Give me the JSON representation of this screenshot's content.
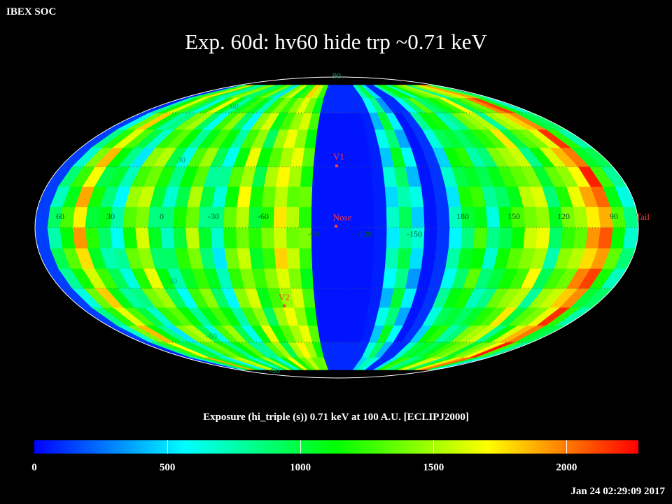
{
  "header": {
    "org": "IBEX SOC",
    "title": "Exp.   60d: hv60 hide trp ~0.71 keV"
  },
  "map": {
    "projection": "Mollweide (ecliptic J2000)",
    "lat_labels": [
      "90",
      "60",
      "30",
      "-30",
      "-60",
      "-90"
    ],
    "lon_labels": [
      "60",
      "30",
      "0",
      "-30",
      "-60",
      "-90",
      "-120",
      "-150",
      "180",
      "150",
      "120",
      "90"
    ],
    "markers": [
      {
        "name": "V1",
        "color": "#ff3b3b"
      },
      {
        "name": "Nose",
        "color": "#ff3b3b"
      },
      {
        "name": "V2",
        "color": "#ff3b3b"
      },
      {
        "name": "Tail",
        "color": "#ff3b3b"
      }
    ]
  },
  "colorbar": {
    "title": "Exposure (hi_triple (s))  0.71 keV at 100 A.U. [ECLIPJ2000]",
    "ticks": [
      "0",
      "500",
      "1000",
      "1500",
      "2000"
    ],
    "min": 0,
    "max": 2270,
    "colors": [
      "#0000ff",
      "#00ffff",
      "#00ff00",
      "#ffff00",
      "#ff0000"
    ]
  },
  "footer": {
    "timestamp": "Jan 24 02:29:09 2017"
  }
}
